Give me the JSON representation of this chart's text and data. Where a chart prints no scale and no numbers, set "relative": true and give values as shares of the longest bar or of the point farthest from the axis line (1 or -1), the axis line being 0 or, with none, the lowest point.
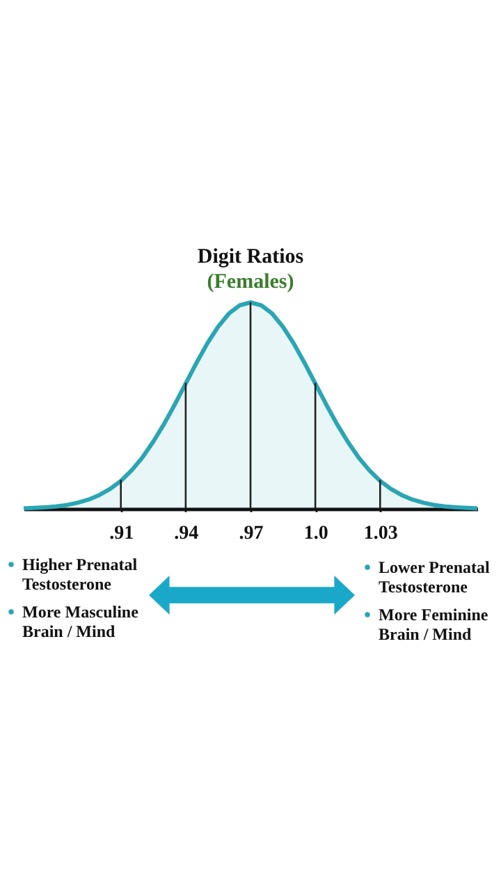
{
  "chart_data": {
    "type": "area",
    "title": "Digit Ratios",
    "subtitle": "(Females)",
    "relative": true,
    "grid": false,
    "xlim": [
      0.865,
      1.075
    ],
    "xticks": [
      {
        "value": 0.91,
        "label": ".91"
      },
      {
        "value": 0.94,
        "label": ".94"
      },
      {
        "value": 0.97,
        "label": ".97"
      },
      {
        "value": 1.0,
        "label": "1.0"
      },
      {
        "value": 1.03,
        "label": "1.03"
      }
    ],
    "series": [
      {
        "color": "#2aa5b3",
        "x": [
          0.865,
          0.87,
          0.875,
          0.88,
          0.885,
          0.89,
          0.895,
          0.9,
          0.905,
          0.91,
          0.915,
          0.92,
          0.925,
          0.93,
          0.935,
          0.94,
          0.945,
          0.95,
          0.955,
          0.96,
          0.965,
          0.97,
          0.975,
          0.98,
          0.985,
          0.99,
          0.995,
          1.0,
          1.005,
          1.01,
          1.015,
          1.02,
          1.025,
          1.03,
          1.035,
          1.04,
          1.045,
          1.05,
          1.055,
          1.06,
          1.065,
          1.07,
          1.075
        ],
        "values": [
          0.002,
          0.004,
          0.007,
          0.011,
          0.018,
          0.029,
          0.044,
          0.066,
          0.096,
          0.135,
          0.186,
          0.249,
          0.325,
          0.411,
          0.506,
          0.607,
          0.707,
          0.801,
          0.882,
          0.946,
          0.986,
          1.0,
          0.986,
          0.946,
          0.882,
          0.801,
          0.707,
          0.607,
          0.506,
          0.411,
          0.325,
          0.249,
          0.186,
          0.135,
          0.096,
          0.066,
          0.044,
          0.029,
          0.018,
          0.011,
          0.007,
          0.004,
          0.002
        ]
      },
      {
        "type": "bar",
        "color": "#222222",
        "x": [
          0.91,
          0.94,
          0.97,
          1.0,
          1.03
        ],
        "values": [
          0.14,
          0.61,
          1.0,
          0.61,
          0.14
        ]
      }
    ],
    "annotations": [
      "Higher Prenatal Testosterone",
      "More Masculine Brain / Mind",
      "Lower Prenatal Testosterone",
      "More Feminine Brain / Mind"
    ]
  }
}
